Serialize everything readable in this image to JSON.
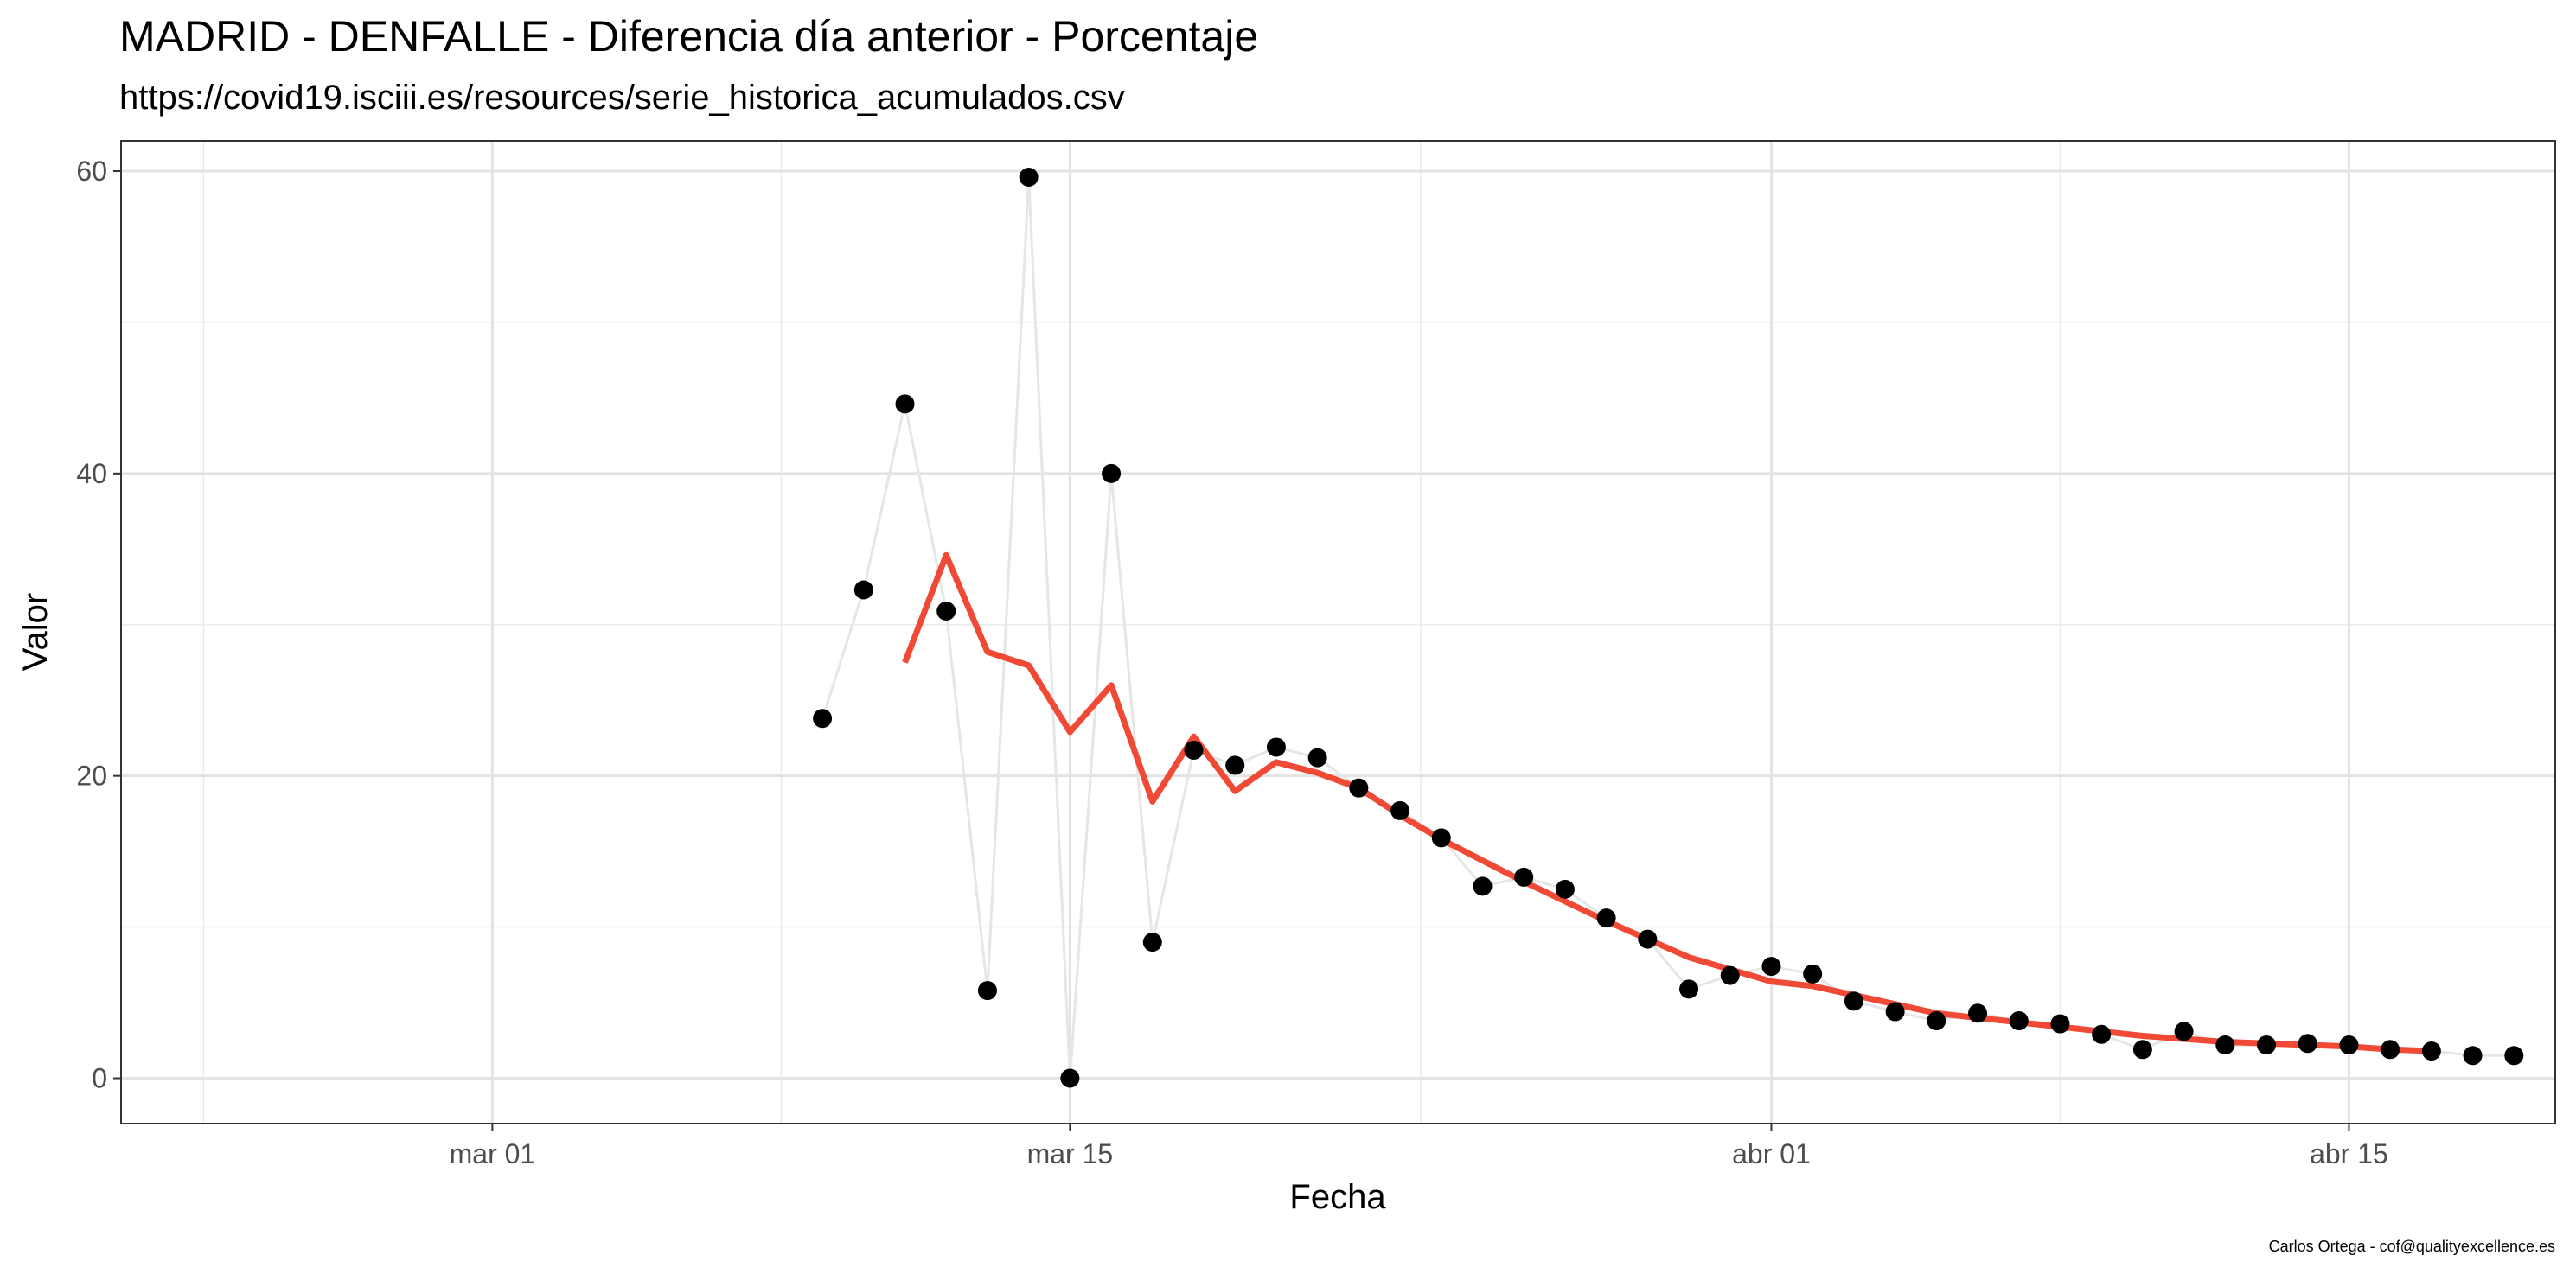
{
  "chart_data": {
    "type": "line",
    "title": "MADRID - DENFALLE - Diferencia día anterior - Porcentaje",
    "subtitle": "https://covid19.isciii.es/resources/serie_historica_acumulados.csv",
    "xlabel": "Fecha",
    "ylabel": "Valor",
    "caption": "Carlos Ortega - cof@qualityexcellence.es",
    "ylim": [
      -3,
      62
    ],
    "xlim": [
      "2020-02-21",
      "2020-04-20"
    ],
    "grid": true,
    "x_ticks": [
      {
        "date": "2020-03-01",
        "label": "mar 01"
      },
      {
        "date": "2020-03-15",
        "label": "mar 15"
      },
      {
        "date": "2020-04-01",
        "label": "abr 01"
      },
      {
        "date": "2020-04-15",
        "label": "abr 15"
      }
    ],
    "y_ticks": [
      0,
      20,
      40,
      60
    ],
    "colors": {
      "points": "#000000",
      "raw_line": "#e6e6e6",
      "smooth_line": "#f04a36"
    },
    "series": [
      {
        "style": "points-with-line",
        "x": [
          "2020-03-09",
          "2020-03-10",
          "2020-03-11",
          "2020-03-12",
          "2020-03-13",
          "2020-03-14",
          "2020-03-15",
          "2020-03-16",
          "2020-03-17",
          "2020-03-18",
          "2020-03-19",
          "2020-03-20",
          "2020-03-21",
          "2020-03-22",
          "2020-03-23",
          "2020-03-24",
          "2020-03-25",
          "2020-03-26",
          "2020-03-27",
          "2020-03-28",
          "2020-03-29",
          "2020-03-30",
          "2020-03-31",
          "2020-04-01",
          "2020-04-02",
          "2020-04-03",
          "2020-04-04",
          "2020-04-05",
          "2020-04-06",
          "2020-04-07",
          "2020-04-08",
          "2020-04-09",
          "2020-04-10",
          "2020-04-11",
          "2020-04-12",
          "2020-04-13",
          "2020-04-14",
          "2020-04-15",
          "2020-04-16",
          "2020-04-17",
          "2020-04-18",
          "2020-04-19"
        ],
        "values": [
          23.8,
          32.3,
          44.6,
          30.9,
          5.8,
          59.6,
          0.0,
          40.0,
          9.0,
          21.7,
          20.7,
          21.9,
          21.2,
          19.2,
          17.7,
          15.9,
          12.7,
          13.3,
          12.5,
          10.6,
          9.2,
          5.9,
          6.8,
          7.4,
          6.9,
          5.1,
          4.4,
          3.8,
          4.3,
          3.8,
          3.6,
          2.9,
          1.9,
          3.1,
          2.2,
          2.2,
          2.3,
          2.2,
          1.9,
          1.8,
          1.5,
          1.5
        ]
      },
      {
        "style": "smoothed-line",
        "x": [
          "2020-03-11",
          "2020-03-12",
          "2020-03-13",
          "2020-03-14",
          "2020-03-15",
          "2020-03-16",
          "2020-03-17",
          "2020-03-18",
          "2020-03-19",
          "2020-03-20",
          "2020-03-21",
          "2020-03-22",
          "2020-03-23",
          "2020-03-24",
          "2020-03-25",
          "2020-03-26",
          "2020-03-27",
          "2020-03-28",
          "2020-03-29",
          "2020-03-30",
          "2020-03-31",
          "2020-04-01",
          "2020-04-02",
          "2020-04-03",
          "2020-04-04",
          "2020-04-05",
          "2020-04-06",
          "2020-04-07",
          "2020-04-08",
          "2020-04-09",
          "2020-04-10",
          "2020-04-11",
          "2020-04-12",
          "2020-04-13",
          "2020-04-14",
          "2020-04-15",
          "2020-04-16",
          "2020-04-17"
        ],
        "values": [
          27.5,
          34.6,
          28.2,
          27.3,
          22.9,
          26.0,
          18.3,
          22.6,
          19.0,
          20.9,
          20.2,
          19.2,
          17.4,
          15.8,
          14.4,
          13.0,
          11.7,
          10.4,
          9.2,
          8.0,
          7.2,
          6.4,
          6.1,
          5.5,
          4.9,
          4.3,
          4.0,
          3.7,
          3.4,
          3.1,
          2.8,
          2.6,
          2.4,
          2.3,
          2.2,
          2.1,
          1.9,
          1.8
        ]
      }
    ]
  }
}
